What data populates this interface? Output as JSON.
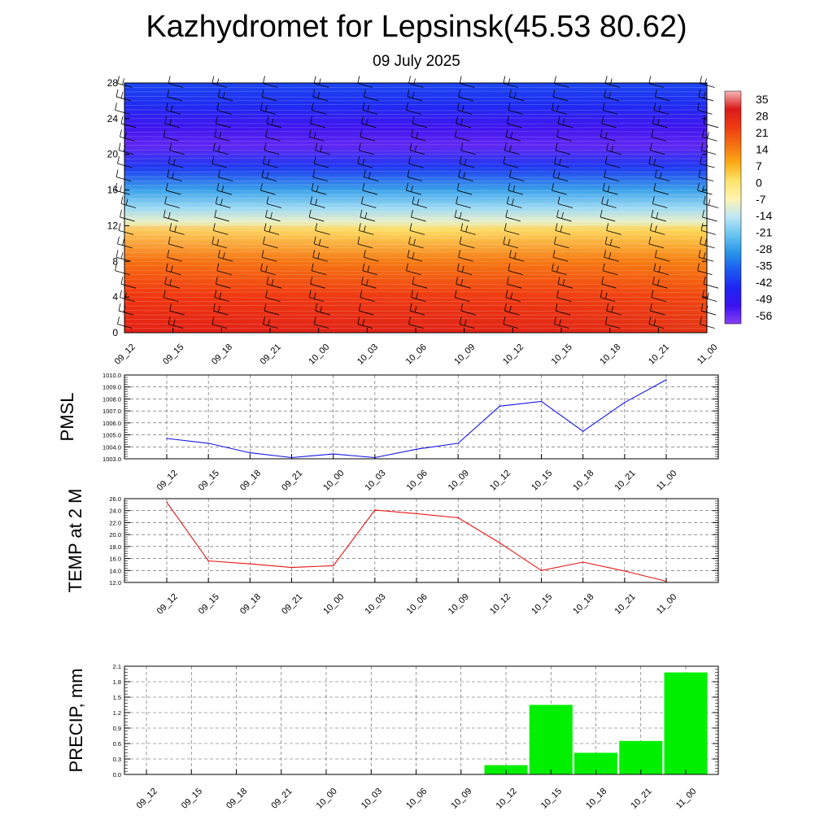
{
  "header": {
    "title": "Kazhydromet for Lepsinsk(45.53 80.62)",
    "subtitle": "09 July 2025"
  },
  "chart_data": [
    {
      "type": "heatmap",
      "title": "",
      "x_categories": [
        "09_12",
        "09_15",
        "09_18",
        "09_21",
        "10_00",
        "10_03",
        "10_06",
        "10_09",
        "10_12",
        "10_15",
        "10_18",
        "10_21",
        "11_00"
      ],
      "y_ticks": [
        0,
        4,
        8,
        12,
        16,
        20,
        24,
        28
      ],
      "ylim": [
        0,
        28
      ],
      "colorbar": {
        "labels": [
          35,
          28,
          21,
          14,
          7,
          0,
          -7,
          -14,
          -21,
          -28,
          -35,
          -42,
          -49,
          -56
        ],
        "colors": [
          "#f6b8b8",
          "#d91a1a",
          "#ef3a12",
          "#f57012",
          "#fbaa16",
          "#fde36a",
          "#fff3b0",
          "#bfe7f7",
          "#6bc6f0",
          "#2a96e8",
          "#1b5af0",
          "#1f24f2",
          "#3a12f0",
          "#8a3ff4"
        ],
        "range": [
          -60,
          38
        ]
      },
      "profile": [
        {
          "level": 0,
          "temp": 28
        },
        {
          "level": 4,
          "temp": 23
        },
        {
          "level": 8,
          "temp": 14
        },
        {
          "level": 11.5,
          "temp": 1
        },
        {
          "level": 12.5,
          "temp": -10
        },
        {
          "level": 14,
          "temp": -18
        },
        {
          "level": 16,
          "temp": -28
        },
        {
          "level": 18.5,
          "temp": -42
        },
        {
          "level": 21,
          "temp": -56
        },
        {
          "level": 23,
          "temp": -53
        },
        {
          "level": 25.5,
          "temp": -44
        },
        {
          "level": 28,
          "temp": -40
        }
      ],
      "wind_barbs": "yes"
    },
    {
      "type": "line",
      "ylabel": "PMSL",
      "x": [
        "09_12",
        "09_15",
        "09_18",
        "09_21",
        "10_00",
        "10_03",
        "10_06",
        "10_09",
        "10_12",
        "10_15",
        "10_18",
        "10_21",
        "11_00"
      ],
      "y": [
        1004.7,
        1004.3,
        1003.5,
        1003.1,
        1003.4,
        1003.1,
        1003.8,
        1004.3,
        1007.4,
        1007.8,
        1005.3,
        1007.7,
        1009.6
      ],
      "ylim": [
        1003.0,
        1010.0
      ],
      "y_ticks": [
        "1003.0",
        "1004.0",
        "1005.0",
        "1006.0",
        "1007.0",
        "1008.0",
        "1009.0",
        "1010.0"
      ],
      "line_color": "#1414e6",
      "grid": true
    },
    {
      "type": "line",
      "ylabel": "TEMP at 2 M",
      "x": [
        "09_12",
        "09_15",
        "09_18",
        "09_21",
        "10_00",
        "10_03",
        "10_06",
        "10_09",
        "10_12",
        "10_15",
        "10_18",
        "10_21",
        "11_00"
      ],
      "y": [
        25.4,
        15.6,
        15.1,
        14.5,
        14.8,
        24.1,
        23.5,
        22.8,
        18.6,
        14.0,
        15.4,
        13.9,
        12.2
      ],
      "ylim": [
        12.0,
        26.0
      ],
      "y_ticks": [
        "12.0",
        "14.0",
        "16.0",
        "18.0",
        "20.0",
        "22.0",
        "24.0",
        "26.0"
      ],
      "line_color": "#e61414",
      "grid": true
    },
    {
      "type": "bar",
      "ylabel": "PRECIP, mm",
      "categories": [
        "09_12",
        "09_15",
        "09_18",
        "09_21",
        "10_00",
        "10_03",
        "10_06",
        "10_09",
        "10_12",
        "10_15",
        "10_18",
        "10_21",
        "11_00"
      ],
      "values": [
        0,
        0,
        0,
        0,
        0,
        0,
        0,
        0,
        0.18,
        1.35,
        0.42,
        0.65,
        1.98
      ],
      "ylim": [
        0,
        2.1
      ],
      "y_ticks": [
        "0.0",
        "0.3",
        "0.6",
        "0.9",
        "1.2",
        "1.5",
        "1.8",
        "2.1"
      ],
      "bar_color": "#00f000",
      "grid": true
    }
  ]
}
